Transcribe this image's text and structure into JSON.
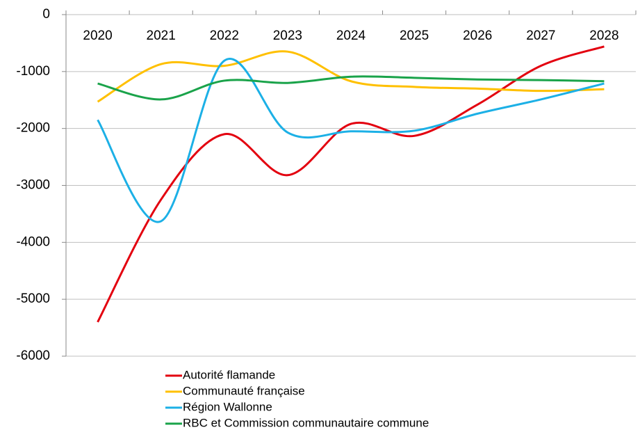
{
  "chart_data": {
    "type": "line",
    "categories": [
      "2020",
      "2021",
      "2022",
      "2023",
      "2024",
      "2025",
      "2026",
      "2027",
      "2028"
    ],
    "series": [
      {
        "name": "Autorité flamande",
        "color": "#e3000f",
        "values": [
          -5400,
          -3250,
          -2100,
          -2820,
          -1920,
          -2130,
          -1580,
          -900,
          -560
        ]
      },
      {
        "name": "Communauté française",
        "color": "#ffc000",
        "values": [
          -1530,
          -870,
          -900,
          -650,
          -1170,
          -1270,
          -1300,
          -1340,
          -1310
        ]
      },
      {
        "name": "Région Wallonne",
        "color": "#1cb0e6",
        "values": [
          -1850,
          -3630,
          -810,
          -2070,
          -2050,
          -2040,
          -1740,
          -1490,
          -1210
        ]
      },
      {
        "name": "RBC et Commission communautaire commune",
        "color": "#1aa34a",
        "values": [
          -1210,
          -1490,
          -1160,
          -1200,
          -1090,
          -1110,
          -1140,
          -1150,
          -1170
        ]
      }
    ],
    "ylim": [
      -6000,
      0
    ],
    "yticks": [
      -6000,
      -5000,
      -4000,
      -3000,
      -2000,
      -1000,
      0
    ],
    "grid": true,
    "smooth": true,
    "legend": "bottom"
  }
}
